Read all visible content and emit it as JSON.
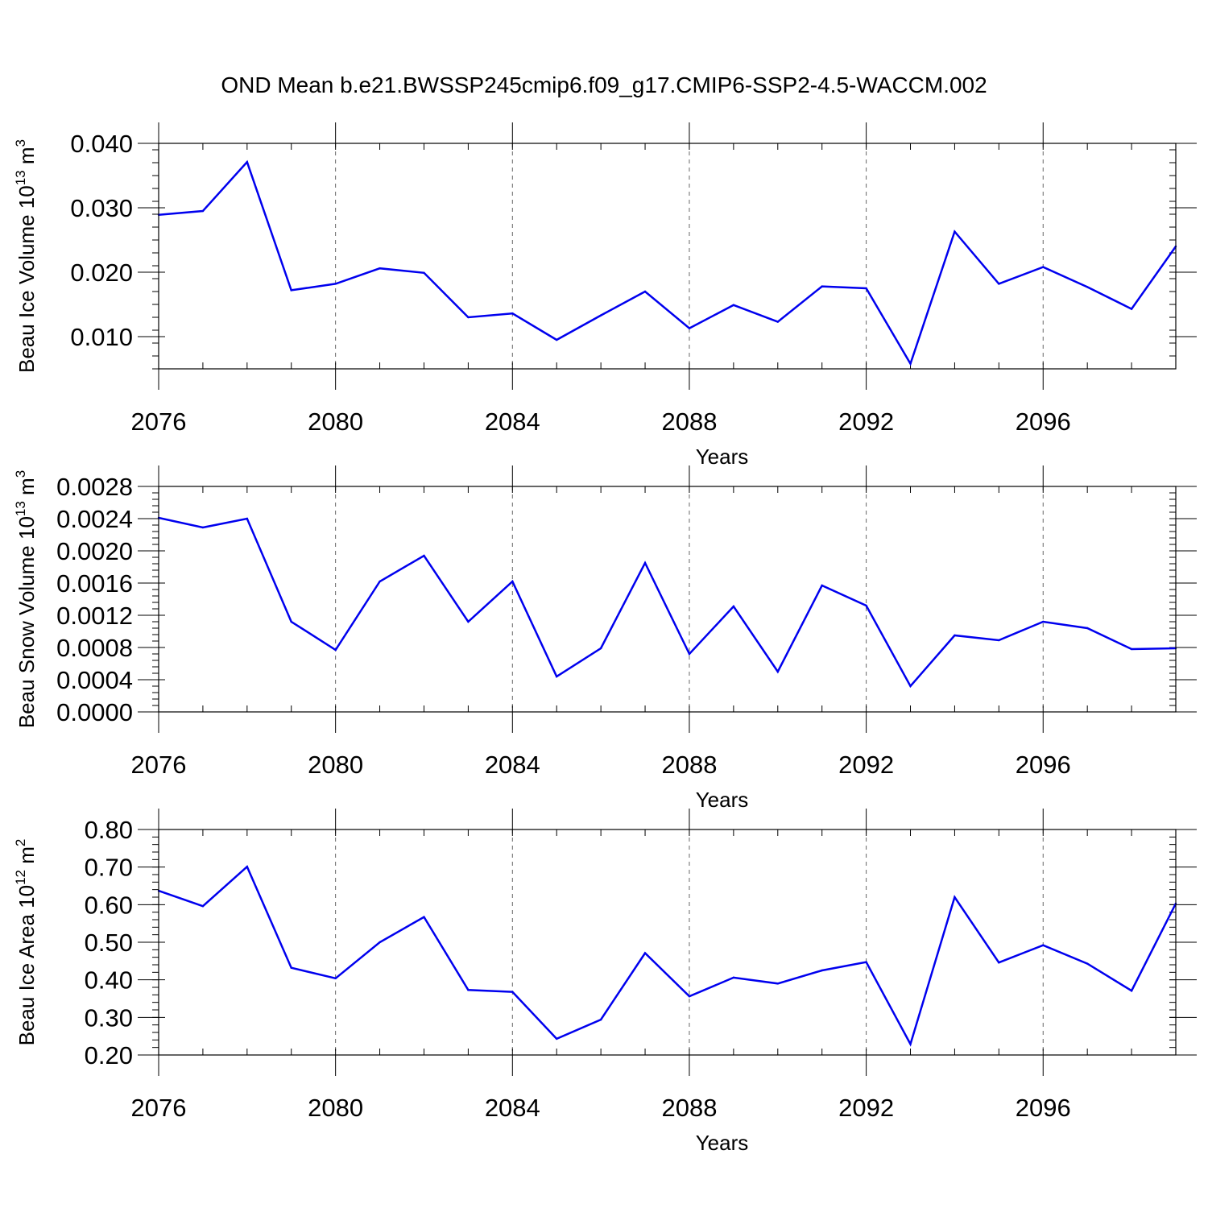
{
  "chart_data": {
    "title": "OND Mean b.e21.BWSSP245cmip6.f09_g17.CMIP6-SSP2-4.5-WACCM.002",
    "line_color": "#0000ee",
    "panels": [
      {
        "type": "line",
        "ylabel_base": "Beau Ice Volume 10",
        "ylabel_exp": "13",
        "ylabel_unit": " m",
        "ylabel_unit_exp": "3",
        "xlabel": "Years",
        "xlim": [
          2076,
          2099
        ],
        "ylim": [
          0.005,
          0.04
        ],
        "yticks": [
          0.01,
          0.02,
          0.03,
          0.04
        ],
        "ytick_labels": [
          "0.010",
          "0.020",
          "0.030",
          "0.040"
        ],
        "xticks": [
          2076,
          2080,
          2084,
          2088,
          2092,
          2096
        ],
        "xtick_labels": [
          "2076",
          "2080",
          "2084",
          "2088",
          "2092",
          "2096"
        ],
        "x": [
          2076,
          2077,
          2078,
          2079,
          2080,
          2081,
          2082,
          2083,
          2084,
          2085,
          2086,
          2087,
          2088,
          2089,
          2090,
          2091,
          2092,
          2093,
          2094,
          2095,
          2096,
          2097,
          2098,
          2099
        ],
        "values": [
          0.0289,
          0.0295,
          0.0371,
          0.0172,
          0.0182,
          0.0206,
          0.0199,
          0.013,
          0.0136,
          0.0095,
          0.0133,
          0.017,
          0.0113,
          0.0149,
          0.0123,
          0.0178,
          0.0175,
          0.0058,
          0.0263,
          0.0182,
          0.0208,
          0.0177,
          0.0143,
          0.024
        ]
      },
      {
        "type": "line",
        "ylabel_base": "Beau Snow Volume 10",
        "ylabel_exp": "13",
        "ylabel_unit": " m",
        "ylabel_unit_exp": "3",
        "xlabel": "Years",
        "xlim": [
          2076,
          2099
        ],
        "ylim": [
          0.0,
          0.0028
        ],
        "yticks": [
          0.0,
          0.0004,
          0.0008,
          0.0012,
          0.0016,
          0.002,
          0.0024,
          0.0028
        ],
        "ytick_labels": [
          "0.0000",
          "0.0004",
          "0.0008",
          "0.0012",
          "0.0016",
          "0.0020",
          "0.0024",
          "0.0028"
        ],
        "xticks": [
          2076,
          2080,
          2084,
          2088,
          2092,
          2096
        ],
        "xtick_labels": [
          "2076",
          "2080",
          "2084",
          "2088",
          "2092",
          "2096"
        ],
        "x": [
          2076,
          2077,
          2078,
          2079,
          2080,
          2081,
          2082,
          2083,
          2084,
          2085,
          2086,
          2087,
          2088,
          2089,
          2090,
          2091,
          2092,
          2093,
          2094,
          2095,
          2096,
          2097,
          2098,
          2099
        ],
        "values": [
          0.00241,
          0.00229,
          0.0024,
          0.00112,
          0.00077,
          0.00162,
          0.00194,
          0.00112,
          0.00162,
          0.00044,
          0.00079,
          0.00185,
          0.00072,
          0.00131,
          0.0005,
          0.00157,
          0.00132,
          0.00032,
          0.00095,
          0.00089,
          0.00112,
          0.00104,
          0.00078,
          0.00079
        ]
      },
      {
        "type": "line",
        "ylabel_base": "Beau Ice Area 10",
        "ylabel_exp": "12",
        "ylabel_unit": " m",
        "ylabel_unit_exp": "2",
        "xlabel": "Years",
        "xlim": [
          2076,
          2099
        ],
        "ylim": [
          0.2,
          0.8
        ],
        "yticks": [
          0.2,
          0.3,
          0.4,
          0.5,
          0.6,
          0.7,
          0.8
        ],
        "ytick_labels": [
          "0.20",
          "0.30",
          "0.40",
          "0.50",
          "0.60",
          "0.70",
          "0.80"
        ],
        "xticks": [
          2076,
          2080,
          2084,
          2088,
          2092,
          2096
        ],
        "xtick_labels": [
          "2076",
          "2080",
          "2084",
          "2088",
          "2092",
          "2096"
        ],
        "x": [
          2076,
          2077,
          2078,
          2079,
          2080,
          2081,
          2082,
          2083,
          2084,
          2085,
          2086,
          2087,
          2088,
          2089,
          2090,
          2091,
          2092,
          2093,
          2094,
          2095,
          2096,
          2097,
          2098,
          2099
        ],
        "values": [
          0.637,
          0.596,
          0.701,
          0.432,
          0.404,
          0.5,
          0.567,
          0.373,
          0.368,
          0.243,
          0.294,
          0.471,
          0.356,
          0.406,
          0.39,
          0.425,
          0.447,
          0.229,
          0.62,
          0.446,
          0.492,
          0.443,
          0.371,
          0.603
        ]
      }
    ]
  }
}
